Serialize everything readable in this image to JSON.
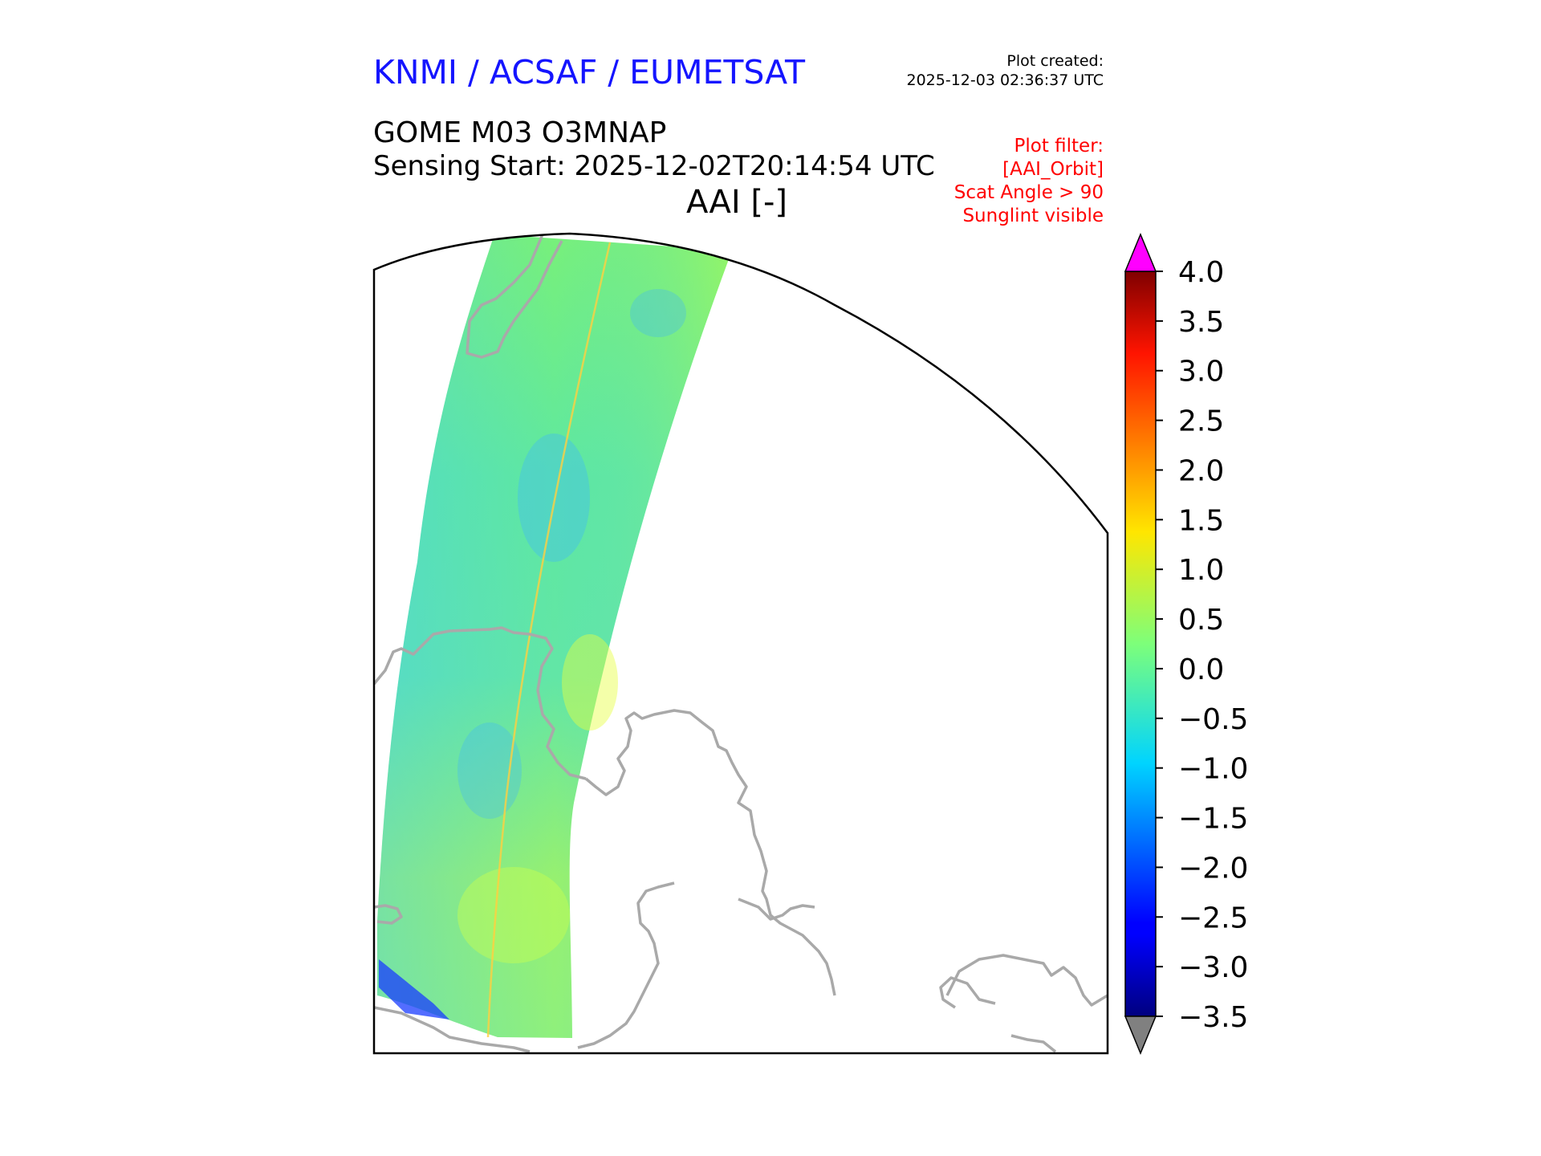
{
  "header": {
    "organization": "KNMI / ACSAF / EUMETSAT",
    "plot_created_label": "Plot created:",
    "plot_created_value": "2025-12-03 02:36:37 UTC",
    "product": "GOME M03 O3MNAP",
    "sensing_start": "Sensing Start: 2025-12-02T20:14:54 UTC",
    "variable_label": "AAI [-]"
  },
  "filter": {
    "lines": [
      "Plot filter:",
      "[AAI_Orbit]",
      "Scat Angle > 90",
      "Sunglint visible"
    ]
  },
  "colorbar": {
    "min": -3.5,
    "max": 4.0,
    "ticks": [
      "4.0",
      "3.5",
      "3.0",
      "2.5",
      "2.0",
      "1.5",
      "1.0",
      "0.5",
      "0.0",
      "−0.5",
      "−1.0",
      "−1.5",
      "−2.0",
      "−2.5",
      "−3.0",
      "−3.5"
    ],
    "over_color": "#ff00ff",
    "under_color": "#808080",
    "colormap": "jet"
  },
  "map": {
    "coastline_color": "#a9a9a9",
    "frame_color": "#000000"
  }
}
